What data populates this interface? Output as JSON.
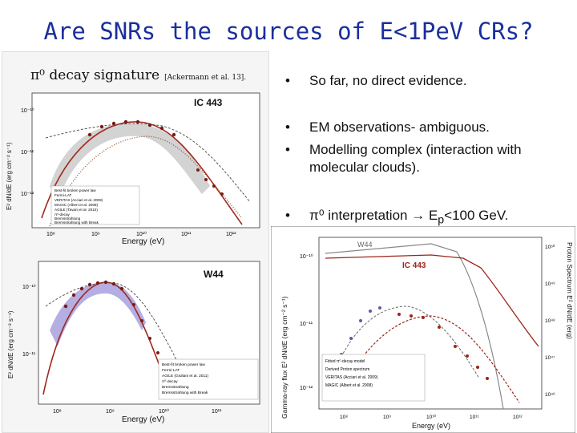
{
  "slide": {
    "title": "Are SNRs the sources of E<1PeV CRs?",
    "caption": "π⁰ decay signature",
    "caption_ref": "[Ackermann et al. 13]."
  },
  "bullets": [
    {
      "text": "So far, no direct evidence."
    },
    {
      "text": "EM observations- ambiguous."
    },
    {
      "text": "Modelling complex (interaction with molecular clouds)."
    },
    {
      "text_pre": "π⁰ interpretation ",
      "arrow": "→",
      "text_post": " E",
      "sub": "p",
      "text_end": "<100 GeV."
    }
  ],
  "plots": {
    "ic443": {
      "label": "IC 443",
      "ylabel": "E² dN/dE (erg cm⁻² s⁻¹)",
      "xlabel": "Energy (eV)",
      "xticks": [
        "10⁸",
        "10⁹",
        "10¹⁰",
        "10¹¹",
        "10¹²"
      ],
      "yticks": [
        "10⁻¹⁰",
        "10⁻¹¹",
        "10⁻¹²"
      ],
      "legend": [
        "Best-fit broken power law",
        "Fermi-LAT",
        "VERITAS (Acciari et al. 2009)",
        "MAGIC (Albert et al. 2008)",
        "AGILE (Tavani et al. 2010)",
        "π⁰-decay",
        "Bremsstrahlung",
        "Bremsstrahlung with Break"
      ]
    },
    "w44": {
      "label": "W44",
      "ylabel": "E² dN/dE (erg cm⁻² s⁻¹)",
      "xlabel": "Energy (eV)",
      "xticks": [
        "10⁸",
        "10⁹",
        "10¹⁰",
        "10¹¹"
      ],
      "yticks": [
        "10⁻¹⁰",
        "10⁻¹¹"
      ],
      "legend": [
        "Best-fit broken power law",
        "Fermi-LAT",
        "AGILE (Giuliani et al. 2011)",
        "π⁰-decay",
        "Bremsstrahlung",
        "Bremsstrahlung with Break"
      ]
    },
    "proton": {
      "label_w44": "W44",
      "label_ic443": "IC 443",
      "ylabel": "Gamma-ray flux E² dN/dE (erg cm⁻² s⁻¹)",
      "y2label": "Proton Spectrum E² dN/dE (erg)",
      "xlabel": "Energy (eV)",
      "xticks": [
        "10⁸",
        "10⁹",
        "10¹⁰",
        "10¹¹",
        "10¹²"
      ],
      "yticks": [
        "10⁻¹⁰",
        "10⁻¹¹",
        "10⁻¹²"
      ],
      "y2ticks": [
        "10⁵⁰",
        "10⁴⁹",
        "10⁴⁸",
        "10⁴⁷",
        "10⁴⁶"
      ],
      "legend": [
        "Fitted π⁰-decay model",
        "Derived Proton spectrum",
        "VERITAS (Acciari et al. 2009)",
        "MAGIC (Albert et al. 2008)"
      ]
    }
  }
}
